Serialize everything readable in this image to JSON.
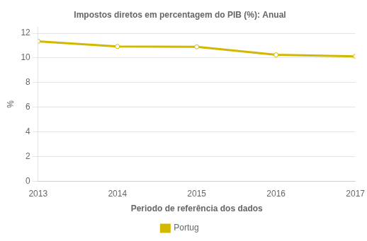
{
  "chart_data": {
    "type": "line",
    "title": "Impostos diretos em percentagem do PIB (%): Anual",
    "xlabel": "Periodo de referência dos dados",
    "ylabel": "%",
    "x": [
      2013,
      2014,
      2015,
      2016,
      2017
    ],
    "series": [
      {
        "name": "Portug",
        "color": "#D4B800",
        "marker": "circle",
        "values": [
          11.35,
          10.93,
          10.9,
          10.25,
          10.13
        ]
      }
    ],
    "xlim": [
      2013,
      2017
    ],
    "xticks": [
      2013,
      2014,
      2015,
      2016,
      2017
    ],
    "ylim": [
      0,
      12.5
    ],
    "yticks": [
      0,
      2,
      4,
      6,
      8,
      10,
      12
    ],
    "grid": "y",
    "legend": "bottom"
  }
}
